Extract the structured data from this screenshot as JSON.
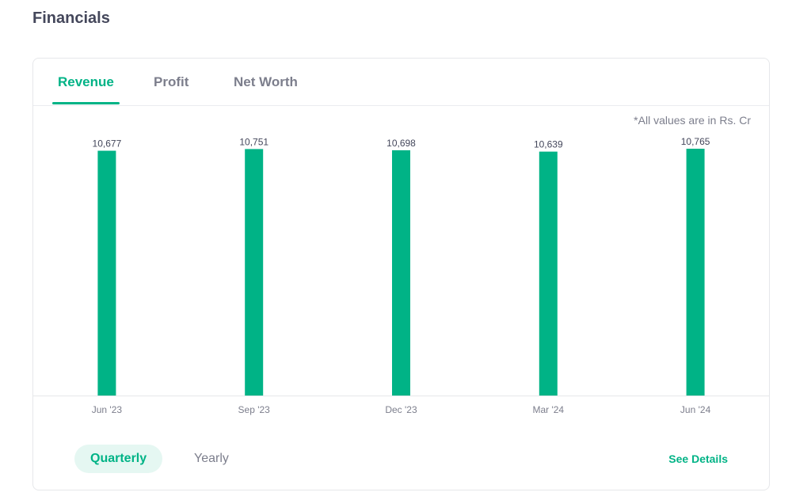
{
  "section": {
    "title": "Financials"
  },
  "tabs": [
    {
      "label": "Revenue",
      "active": true
    },
    {
      "label": "Profit",
      "active": false
    },
    {
      "label": "Net Worth",
      "active": false
    }
  ],
  "note": "*All values are in Rs. Cr",
  "period_toggle": [
    {
      "label": "Quarterly",
      "active": true
    },
    {
      "label": "Yearly",
      "active": false
    }
  ],
  "see_details_label": "See Details",
  "colors": {
    "accent": "#00b386",
    "bar": "#00b386",
    "text": "#44475b",
    "muted": "#7c7e8c"
  },
  "chart_data": {
    "type": "bar",
    "categories": [
      "Jun '23",
      "Sep '23",
      "Dec '23",
      "Mar '24",
      "Jun '24"
    ],
    "values": [
      10677,
      10751,
      10698,
      10639,
      10765
    ],
    "value_labels": [
      "10,677",
      "10,751",
      "10,698",
      "10,639",
      "10,765"
    ],
    "title": "",
    "xlabel": "",
    "ylabel": "",
    "ylim": [
      0,
      10765
    ],
    "grid": false,
    "legend": "none"
  }
}
